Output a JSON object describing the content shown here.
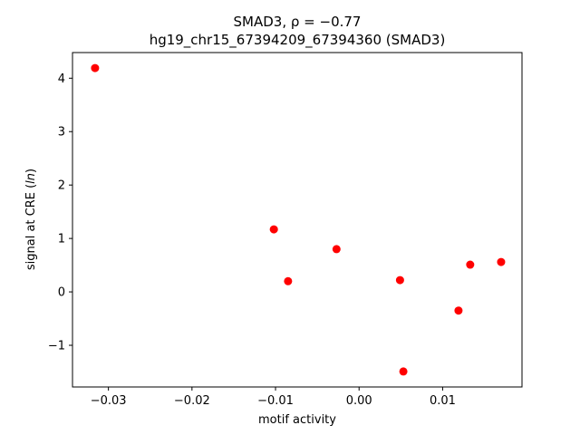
{
  "chart_data": {
    "type": "scatter",
    "title_line1": "SMAD3, ρ = −0.77",
    "title_line2": "hg19_chr15_67394209_67394360 (SMAD3)",
    "xlabel": "motif activity",
    "ylabel_prefix": "signal at CRE (",
    "ylabel_italic": "ln",
    "ylabel_suffix": ")",
    "xlim": [
      -0.0343,
      0.0195
    ],
    "ylim": [
      -1.78,
      4.48
    ],
    "x_ticks": [
      -0.03,
      -0.02,
      -0.01,
      0.0,
      0.01
    ],
    "x_tick_labels": [
      "−0.03",
      "−0.02",
      "−0.01",
      "0.00",
      "0.01"
    ],
    "y_ticks": [
      -1,
      0,
      1,
      2,
      3,
      4
    ],
    "y_tick_labels": [
      "−1",
      "0",
      "1",
      "2",
      "3",
      "4"
    ],
    "grid": false,
    "marker_color": "#ff0000",
    "points": [
      {
        "x": -0.0316,
        "y": 4.19
      },
      {
        "x": -0.0102,
        "y": 1.17
      },
      {
        "x": -0.0085,
        "y": 0.2
      },
      {
        "x": -0.0027,
        "y": 0.8
      },
      {
        "x": 0.0049,
        "y": 0.22
      },
      {
        "x": 0.0053,
        "y": -1.49
      },
      {
        "x": 0.0119,
        "y": -0.35
      },
      {
        "x": 0.0133,
        "y": 0.51
      },
      {
        "x": 0.017,
        "y": 0.56
      }
    ]
  }
}
